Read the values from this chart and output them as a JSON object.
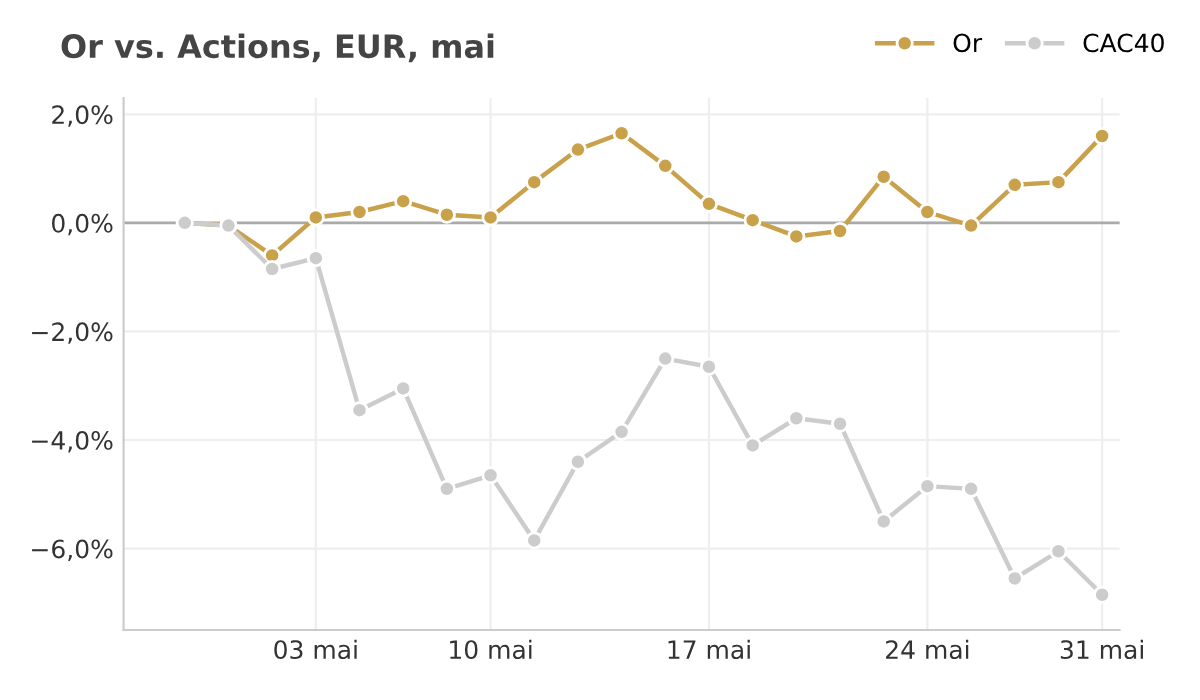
{
  "chart_data": {
    "type": "line",
    "title": "Or vs. Actions, EUR, mai",
    "categories": [
      null,
      null,
      null,
      "03 mai",
      null,
      null,
      null,
      "10 mai",
      null,
      null,
      null,
      null,
      "17 mai",
      null,
      null,
      null,
      null,
      "24 mai",
      null,
      null,
      null,
      "31 mai"
    ],
    "series": [
      {
        "name": "Or",
        "color": "#c9a14a",
        "values": [
          0,
          -0.05,
          -0.6,
          0.1,
          0.2,
          0.4,
          0.15,
          0.1,
          0.75,
          1.35,
          1.65,
          1.05,
          0.35,
          0.05,
          -0.25,
          -0.15,
          0.85,
          0.2,
          -0.05,
          0.7,
          0.75,
          1.6
        ]
      },
      {
        "name": "CAC40",
        "color": "#cccccc",
        "values": [
          0,
          -0.05,
          -0.85,
          -0.65,
          -3.45,
          -3.05,
          -4.9,
          -4.65,
          -5.85,
          -4.4,
          -3.85,
          -2.5,
          -2.65,
          -4.1,
          -3.6,
          -3.7,
          -5.5,
          -4.85,
          -4.9,
          -6.55,
          -6.05,
          -6.85
        ]
      }
    ],
    "ylim": [
      -7.5,
      2.3
    ],
    "yticks": [
      {
        "value": 2,
        "label": "2,0%"
      },
      {
        "value": 0,
        "label": "0,0%"
      },
      {
        "value": -2,
        "label": "−2,0%"
      },
      {
        "value": -4,
        "label": "−4,0%"
      },
      {
        "value": -6,
        "label": "−6,0%"
      }
    ],
    "ref_lines": [
      {
        "axis": "y",
        "value": 0,
        "color": "#aaaaaa"
      }
    ],
    "grid": true,
    "legend": "top right",
    "marker": "circle",
    "line_style": "solid"
  }
}
